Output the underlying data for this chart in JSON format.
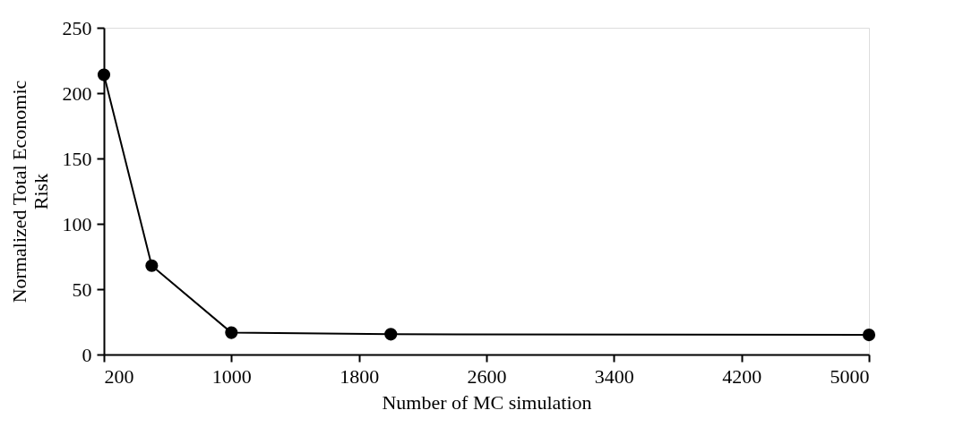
{
  "chart_data": {
    "type": "line",
    "xlabel": "Number of MC simulation",
    "ylabel": "Normalized Total Economic Risk",
    "x": [
      200,
      500,
      1000,
      2000,
      5000
    ],
    "series": [
      {
        "color": "#000000",
        "values": [
          214,
          68,
          16.7,
          15.5,
          15
        ]
      }
    ],
    "xlim": [
      200,
      5000
    ],
    "xticks": [
      200,
      1000,
      1800,
      2600,
      3400,
      4200,
      5000
    ],
    "ylim": [
      0,
      250
    ],
    "yticks": [
      0,
      50,
      100,
      150,
      200,
      250
    ],
    "grid": false,
    "legend": false,
    "marker": "circle",
    "line_style": "solid"
  }
}
